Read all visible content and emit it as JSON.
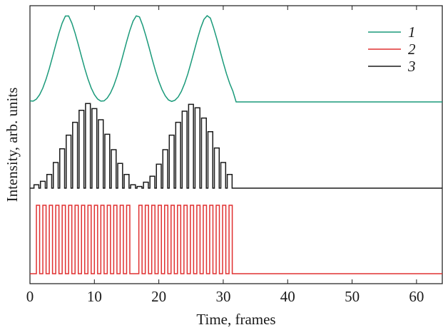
{
  "chart_data": {
    "type": "line",
    "xlabel": "Time, frames",
    "ylabel": "Intensity, arb. units",
    "xlim": [
      0,
      64
    ],
    "x_ticks": [
      0,
      10,
      20,
      30,
      40,
      50,
      60
    ],
    "y_tick_labels": "none",
    "grid": false,
    "legend_placement": "top-right",
    "colors": {
      "1": "#1a9a7a",
      "2": "#e03030",
      "3": "#1a1a1a"
    },
    "series": [
      {
        "name": "1",
        "style": "smooth",
        "x": [
          0,
          0.5,
          1,
          1.5,
          2,
          2.5,
          3,
          3.5,
          4,
          4.5,
          5,
          5.5,
          6,
          6.5,
          7,
          7.5,
          8,
          8.5,
          9,
          9.5,
          10,
          10.5,
          11,
          11.5,
          12,
          12.5,
          13,
          13.5,
          14,
          14.5,
          15,
          15.5,
          16,
          16.5,
          17,
          17.5,
          18,
          18.5,
          19,
          19.5,
          20,
          20.5,
          21,
          21.5,
          22,
          22.5,
          23,
          23.5,
          24,
          24.5,
          25,
          25.5,
          26,
          26.5,
          27,
          27.5,
          28,
          28.5,
          29,
          29.5,
          30,
          30.5,
          31,
          31.5,
          32,
          40,
          50,
          64
        ],
        "y": [
          0.012,
          0.009,
          0.033,
          0.084,
          0.161,
          0.264,
          0.386,
          0.522,
          0.663,
          0.797,
          0.914,
          0.996,
          0.997,
          0.915,
          0.799,
          0.666,
          0.525,
          0.389,
          0.266,
          0.163,
          0.085,
          0.034,
          0.009,
          0.012,
          0.045,
          0.104,
          0.187,
          0.295,
          0.42,
          0.558,
          0.698,
          0.828,
          0.936,
          0.998,
          0.986,
          0.887,
          0.764,
          0.628,
          0.488,
          0.356,
          0.239,
          0.143,
          0.071,
          0.023,
          0.006,
          0.019,
          0.057,
          0.122,
          0.212,
          0.324,
          0.455,
          0.593,
          0.731,
          0.857,
          0.956,
          1.0,
          0.972,
          0.86,
          0.732,
          0.594,
          0.456,
          0.327,
          0.215,
          0.124,
          0.0,
          0.0,
          0.0,
          0.0
        ]
      },
      {
        "name": "2",
        "style": "pulse-train",
        "pulses": [
          [
            1,
            1.5
          ],
          [
            2,
            2.5
          ],
          [
            3,
            3.5
          ],
          [
            4,
            4.5
          ],
          [
            5,
            5.5
          ],
          [
            6,
            6.5
          ],
          [
            7,
            7.5
          ],
          [
            8,
            8.5
          ],
          [
            9,
            9.5
          ],
          [
            10,
            10.5
          ],
          [
            11,
            11.5
          ],
          [
            12,
            12.5
          ],
          [
            13,
            13.5
          ],
          [
            14,
            14.5
          ],
          [
            15,
            15.5
          ],
          [
            16.9,
            17.4
          ],
          [
            17.9,
            18.4
          ],
          [
            18.9,
            19.4
          ],
          [
            19.9,
            20.4
          ],
          [
            20.9,
            21.4
          ],
          [
            21.9,
            22.4
          ],
          [
            22.9,
            23.4
          ],
          [
            23.9,
            24.4
          ],
          [
            24.9,
            25.4
          ],
          [
            25.9,
            26.4
          ],
          [
            26.9,
            27.4
          ],
          [
            27.9,
            28.4
          ],
          [
            28.9,
            29.4
          ],
          [
            29.9,
            30.4
          ],
          [
            30.9,
            31.4
          ]
        ],
        "high": 1,
        "low": 0,
        "x_end": 64
      },
      {
        "name": "3",
        "style": "bars",
        "x": [
          1,
          2,
          3,
          4,
          5,
          6,
          7,
          8,
          9,
          10,
          11,
          12,
          13,
          14,
          15,
          16,
          17,
          18,
          19,
          20,
          21,
          22,
          23,
          24,
          25,
          26,
          27,
          28,
          29,
          30,
          31
        ],
        "y": [
          0.04,
          0.08,
          0.16,
          0.3,
          0.46,
          0.62,
          0.77,
          0.91,
          0.99,
          0.93,
          0.8,
          0.63,
          0.45,
          0.29,
          0.16,
          0.04,
          0.02,
          0.07,
          0.14,
          0.28,
          0.45,
          0.62,
          0.77,
          0.9,
          0.98,
          0.94,
          0.82,
          0.66,
          0.47,
          0.3,
          0.16
        ],
        "bar_width": 0.75,
        "x_end": 64
      }
    ]
  }
}
